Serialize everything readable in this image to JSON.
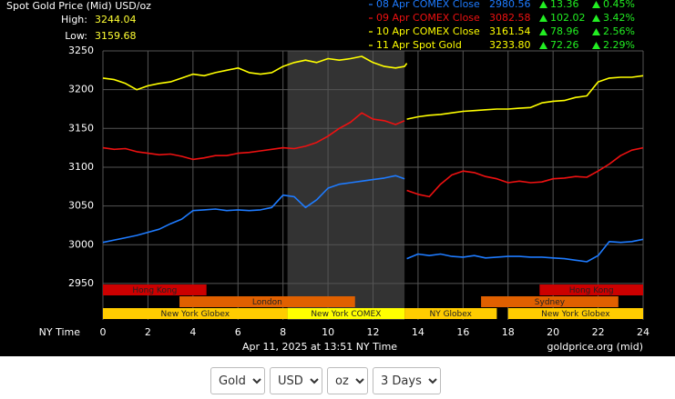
{
  "chart_data": {
    "type": "line",
    "title": "Spot Gold Price (Mid) USD/oz",
    "high": {
      "label": "High:",
      "value": 3244.04
    },
    "low": {
      "label": "Low:",
      "value": 3159.68
    },
    "x_label": "NY Time",
    "timestamp": "Apr 11, 2025 at 13:51 NY Time",
    "source": "goldprice.org (mid)",
    "xlim": [
      0,
      24
    ],
    "xticks": [
      0,
      2,
      4,
      6,
      8,
      10,
      12,
      14,
      16,
      18,
      20,
      22,
      24
    ],
    "ylim": [
      2903,
      3250
    ],
    "yticks": [
      2950,
      3000,
      3050,
      3100,
      3150,
      3200,
      3250
    ],
    "grid": true,
    "change_color": "#22ee22",
    "x": [
      0,
      0.5,
      1,
      1.5,
      2,
      2.5,
      3,
      3.5,
      4,
      4.5,
      5,
      5.5,
      6,
      6.5,
      7,
      7.5,
      8,
      8.5,
      9,
      9.5,
      10,
      10.5,
      11,
      11.5,
      12,
      12.5,
      13,
      13.4,
      13.45,
      13.5,
      14,
      14.5,
      15,
      15.5,
      16,
      16.5,
      17,
      17.5,
      18,
      18.5,
      19,
      19.5,
      20,
      20.5,
      21,
      21.5,
      22,
      22.5,
      23,
      23.5,
      24
    ],
    "series": [
      {
        "name": "08 Apr COMEX Close",
        "color": "#1e7bff",
        "close": 2980.56,
        "change": 13.36,
        "change_pct": {
          "value": 0.45,
          "label": "0.45%"
        },
        "values": [
          3003,
          3006,
          3009,
          3012,
          3016,
          3020,
          3027,
          3033,
          3044,
          3045,
          3046,
          3044,
          3045,
          3044,
          3045,
          3048,
          3064,
          3062,
          3048,
          3058,
          3073,
          3078,
          3080,
          3082,
          3084,
          3086,
          3089,
          3085,
          null,
          2982,
          2988,
          2986,
          2988,
          2985,
          2984,
          2986,
          2983,
          2984,
          2985,
          2985,
          2984,
          2984,
          2983,
          2982,
          2980,
          2978,
          2986,
          3004,
          3003,
          3004,
          3007
        ]
      },
      {
        "name": "09 Apr COMEX Close",
        "color": "#ee1111",
        "close": 3082.58,
        "change": 102.02,
        "change_pct": {
          "value": 3.42,
          "label": "3.42%"
        },
        "values": [
          3125,
          3123,
          3124,
          3120,
          3118,
          3116,
          3117,
          3114,
          3110,
          3112,
          3115,
          3115,
          3118,
          3119,
          3121,
          3123,
          3125,
          3124,
          3127,
          3132,
          3140,
          3150,
          3158,
          3170,
          3162,
          3160,
          3155,
          3160,
          null,
          3070,
          3065,
          3062,
          3078,
          3090,
          3095,
          3093,
          3088,
          3085,
          3080,
          3082,
          3080,
          3081,
          3085,
          3086,
          3088,
          3087,
          3095,
          3104,
          3115,
          3122,
          3125
        ]
      },
      {
        "name": "10 Apr COMEX Close",
        "color": "#ffff00",
        "close": 3161.54,
        "change": 78.96,
        "change_pct": {
          "value": 2.56,
          "label": "2.56%"
        },
        "values": [
          null,
          null,
          null,
          null,
          null,
          null,
          null,
          null,
          null,
          null,
          null,
          null,
          null,
          null,
          null,
          null,
          null,
          null,
          null,
          null,
          null,
          null,
          null,
          null,
          null,
          null,
          null,
          null,
          null,
          3162,
          3165,
          3167,
          3168,
          3170,
          3172,
          3173,
          3174,
          3175,
          3175,
          3176,
          3177,
          3183,
          3185,
          3186,
          3190,
          3192,
          3210,
          3215,
          3216,
          3216,
          3218
        ]
      },
      {
        "name": "11 Apr Spot Gold",
        "color": "#ffff00",
        "close": {
          "value": 3233.8,
          "label": "3233.80"
        },
        "change": 72.26,
        "change_pct": {
          "value": 2.29,
          "label": "2.29%"
        },
        "values": [
          3215,
          3213,
          3208,
          3200,
          3205,
          3208,
          3210,
          3215,
          3220,
          3218,
          3222,
          3225,
          3228,
          3222,
          3220,
          3222,
          3230,
          3235,
          3238,
          3235,
          3240,
          3238,
          3240,
          3243,
          3235,
          3230,
          3228,
          3230,
          3232,
          3234,
          null,
          null,
          null,
          null,
          null,
          null,
          null,
          null,
          null,
          null,
          null,
          null,
          null,
          null,
          null,
          null,
          null,
          null,
          null,
          null,
          null
        ]
      }
    ],
    "session_rows": [
      {
        "color": "#cc0000",
        "bars": [
          {
            "label": "Hong Kong",
            "start": 0,
            "end": 4.6
          },
          {
            "label": "Hong Kong",
            "start": 19.4,
            "end": 24
          }
        ]
      },
      {
        "color": "#e06000",
        "bars": [
          {
            "label": "London",
            "start": 3.4,
            "end": 11.2
          },
          {
            "label": "Sydney",
            "start": 16.8,
            "end": 22.9
          }
        ]
      },
      {
        "color": "#ffcc00",
        "bars": [
          {
            "label": "New York Globex",
            "start": 0,
            "end": 8.2
          },
          {
            "label": "New York COMEX",
            "start": 8.2,
            "end": 13.4,
            "color": "#ffff00",
            "highlight": true
          },
          {
            "label": "NY Globex",
            "start": 13.4,
            "end": 17.5
          },
          {
            "label": "New York Globex",
            "start": 18,
            "end": 24
          }
        ]
      }
    ]
  },
  "controls": [
    "Gold",
    "USD",
    "oz",
    "3 Days"
  ]
}
